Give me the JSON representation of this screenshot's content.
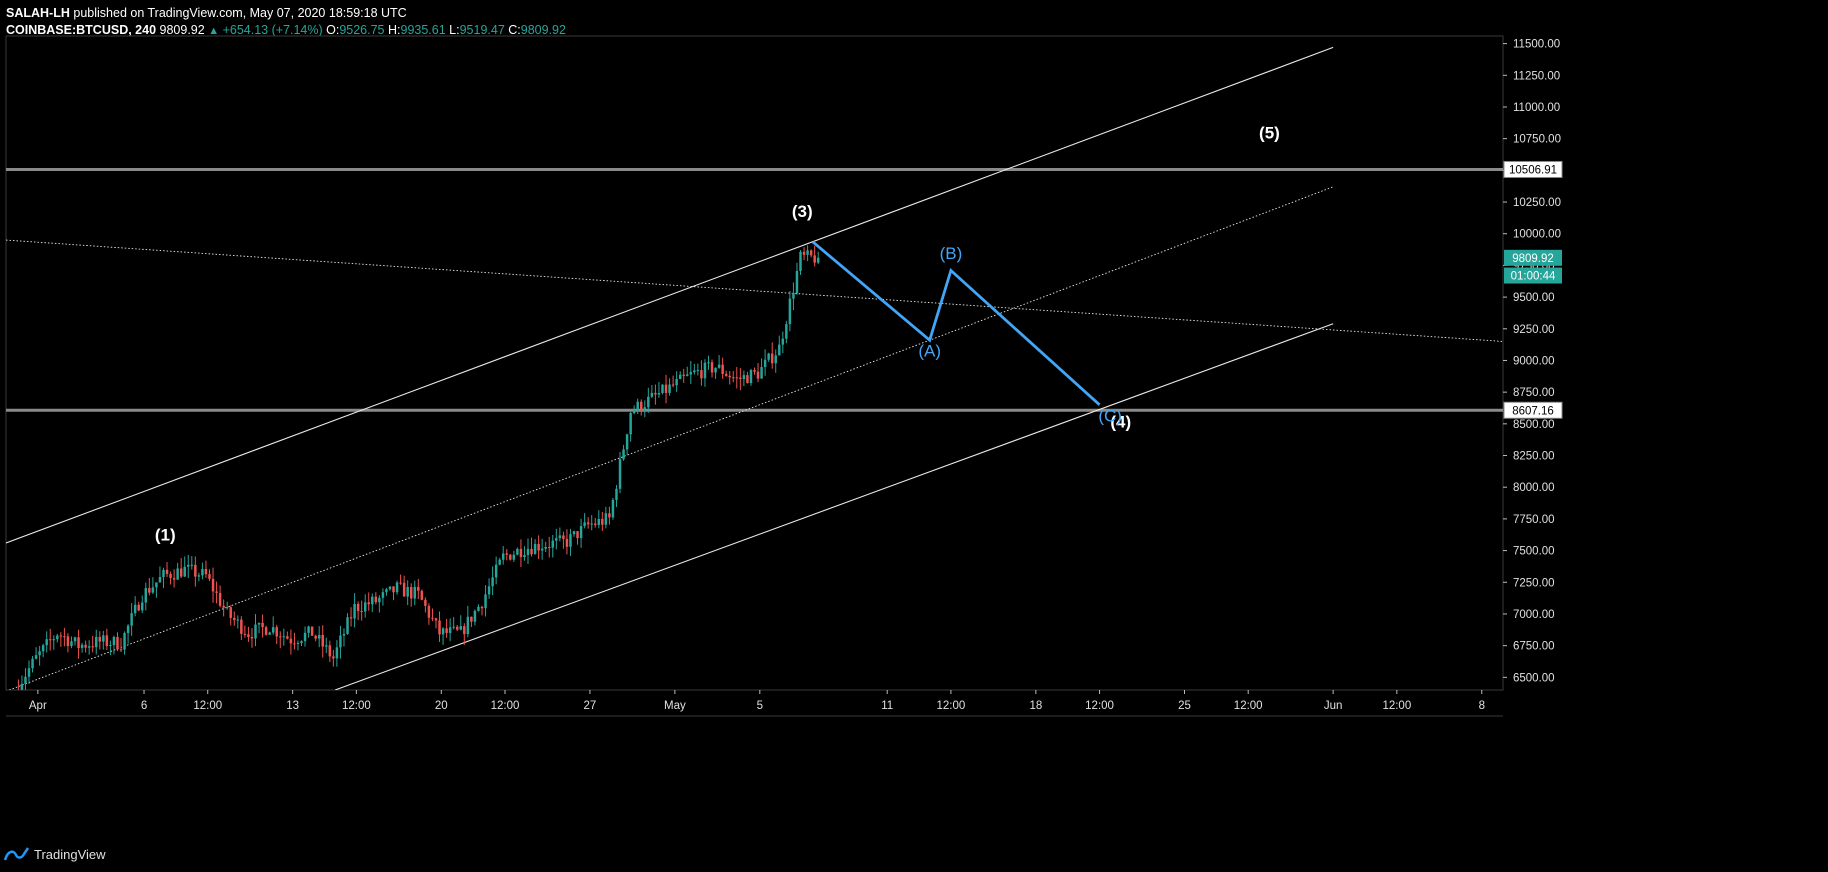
{
  "header": {
    "author": "SALAH-LH",
    "published": "published on TradingView.com, May 07, 2020 18:59:18 UTC",
    "symbol": "COINBASE:BTCUSD, 240",
    "last": "9809.92",
    "change": "+654.13 (+7.14%)",
    "open_label": "O:",
    "open": "9526.75",
    "high_label": "H:",
    "high": "9935.61",
    "low_label": "L:",
    "low": "9519.47",
    "close_label": "C:",
    "close": "9809.92"
  },
  "footer": {
    "brand": "TradingView"
  },
  "colors": {
    "up": "#26a69a",
    "down": "#ef5350",
    "wave": "#42a5f5",
    "bg": "#000000"
  },
  "chart_data": {
    "type": "candlestick",
    "symbol": "COINBASE:BTCUSD",
    "interval": "240",
    "ylim": [
      6400,
      11560
    ],
    "y_ticks": [
      6500,
      6750,
      7000,
      7250,
      7500,
      7750,
      8000,
      8250,
      8500,
      8750,
      9000,
      9250,
      9500,
      9750,
      10000,
      10250,
      10500,
      10750,
      11000,
      11250,
      11500
    ],
    "y_tick_labels": [
      "6500.00",
      "6750.00",
      "7000.00",
      "7250.00",
      "7500.00",
      "7750.00",
      "8000.00",
      "8250.00",
      "8500.00",
      "8750.00",
      "9000.00",
      "9250.00",
      "9500.00",
      "9750.00",
      "10000.00",
      "10250.00",
      "10500.00",
      "10750.00",
      "11000.00",
      "11250.00",
      "11500.00"
    ],
    "x_range": [
      "2020-03-30 12:00",
      "2020-06-09"
    ],
    "x_ticks": [
      {
        "t": "2020-04-01",
        "label": "Apr"
      },
      {
        "t": "2020-04-06",
        "label": "6"
      },
      {
        "t": "2020-04-09",
        "label": "12:00"
      },
      {
        "t": "2020-04-13",
        "label": "13"
      },
      {
        "t": "2020-04-16",
        "label": "12:00"
      },
      {
        "t": "2020-04-20",
        "label": "20"
      },
      {
        "t": "2020-04-23",
        "label": "12:00"
      },
      {
        "t": "2020-04-27",
        "label": "27"
      },
      {
        "t": "2020-05-01",
        "label": "May"
      },
      {
        "t": "2020-05-05",
        "label": "5"
      },
      {
        "t": "2020-05-11",
        "label": "11"
      },
      {
        "t": "2020-05-14",
        "label": "12:00"
      },
      {
        "t": "2020-05-18",
        "label": "18"
      },
      {
        "t": "2020-05-21",
        "label": "12:00"
      },
      {
        "t": "2020-05-25",
        "label": "25"
      },
      {
        "t": "2020-05-28",
        "label": "12:00"
      },
      {
        "t": "2020-06-01",
        "label": "Jun"
      },
      {
        "t": "2020-06-04",
        "label": "12:00"
      },
      {
        "t": "2020-06-08",
        "label": "8"
      }
    ],
    "close_path": [
      [
        "2020-03-31",
        6400
      ],
      [
        "2020-04-01",
        6650
      ],
      [
        "2020-04-02",
        6850
      ],
      [
        "2020-04-03",
        6750
      ],
      [
        "2020-04-04",
        6780
      ],
      [
        "2020-04-05",
        6770
      ],
      [
        "2020-04-06",
        7150
      ],
      [
        "2020-04-07",
        7300
      ],
      [
        "2020-04-08",
        7350
      ],
      [
        "2020-04-09",
        7300
      ],
      [
        "2020-04-10",
        7000
      ],
      [
        "2020-04-11",
        6850
      ],
      [
        "2020-04-12",
        6900
      ],
      [
        "2020-04-13",
        6800
      ],
      [
        "2020-04-14",
        6850
      ],
      [
        "2020-04-15",
        6650
      ],
      [
        "2020-04-16",
        7050
      ],
      [
        "2020-04-17",
        7100
      ],
      [
        "2020-04-18",
        7200
      ],
      [
        "2020-04-19",
        7150
      ],
      [
        "2020-04-20",
        6850
      ],
      [
        "2020-04-21",
        6850
      ],
      [
        "2020-04-22",
        7100
      ],
      [
        "2020-04-23",
        7450
      ],
      [
        "2020-04-24",
        7520
      ],
      [
        "2020-04-25",
        7550
      ],
      [
        "2020-04-26",
        7570
      ],
      [
        "2020-04-27",
        7700
      ],
      [
        "2020-04-28",
        7750
      ],
      [
        "2020-04-29",
        8600
      ],
      [
        "2020-04-30",
        8700
      ],
      [
        "2020-05-01",
        8800
      ],
      [
        "2020-05-02",
        8900
      ],
      [
        "2020-05-03",
        8950
      ],
      [
        "2020-05-04",
        8850
      ],
      [
        "2020-05-05",
        8900
      ],
      [
        "2020-05-06",
        9100
      ],
      [
        "2020-05-07",
        9809.92
      ]
    ],
    "horizontal_levels": [
      {
        "price": 10506.91,
        "label": "10506.91"
      },
      {
        "price": 8607.16,
        "label": "8607.16"
      }
    ],
    "price_tags": [
      {
        "price": 9809.92,
        "label": "9809.92",
        "color": "#26a69a"
      },
      {
        "price": 9670,
        "label": "01:00:44",
        "color": "#26a69a"
      }
    ],
    "channel_lines": [
      {
        "role": "upper",
        "from": [
          "2020-03-30 12:00",
          7560
        ],
        "to": [
          "2020-06-01",
          11470
        ],
        "style": "solid"
      },
      {
        "role": "middle",
        "from": [
          "2020-03-30 12:00",
          6390
        ],
        "to": [
          "2020-06-01",
          10370
        ],
        "style": "dotted"
      },
      {
        "role": "lower",
        "from": [
          "2020-04-15",
          6400
        ],
        "to": [
          "2020-06-01",
          9290
        ],
        "style": "solid"
      },
      {
        "role": "descending",
        "from": [
          "2020-03-30 12:00",
          9950
        ],
        "to": [
          "2020-06-09",
          9150
        ],
        "style": "dotted"
      }
    ],
    "wave_path": [
      [
        "2020-05-07 12:00",
        9935
      ],
      [
        "2020-05-13",
        9160
      ],
      [
        "2020-05-14",
        9710
      ],
      [
        "2020-05-21",
        8650
      ]
    ],
    "annotations": [
      {
        "label": "(1)",
        "t": "2020-04-07",
        "price": 7580,
        "color": "#ffffff"
      },
      {
        "label": "(3)",
        "t": "2020-05-07",
        "price": 10130,
        "color": "#ffffff"
      },
      {
        "label": "(5)",
        "t": "2020-05-29",
        "price": 10750,
        "color": "#ffffff"
      },
      {
        "label": "(4)",
        "t": "2020-05-22",
        "price": 8470,
        "color": "#ffffff"
      },
      {
        "label": "(A)",
        "t": "2020-05-13",
        "price": 9030,
        "color": "#42a5f5"
      },
      {
        "label": "(B)",
        "t": "2020-05-14",
        "price": 9800,
        "color": "#42a5f5"
      },
      {
        "label": "(C)",
        "t": "2020-05-21 12:00",
        "price": 8520,
        "color": "#42a5f5"
      }
    ]
  }
}
